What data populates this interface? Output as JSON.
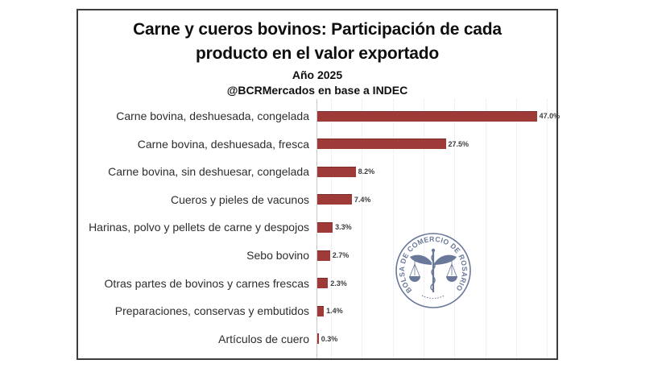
{
  "figure": {
    "title_line1": "Carne y cueros bovinos: Participación de cada",
    "title_line2": "producto en el valor exportado",
    "subtitle": "Año 2025",
    "source": "@BCRMercados en base a INDEC"
  },
  "chart_data": {
    "type": "bar",
    "orientation": "horizontal",
    "title": "Carne y cueros bovinos: Participación de cada producto en el valor exportado",
    "subtitle": "Año 2025",
    "source": "@BCRMercados en base a INDEC",
    "xlabel": "",
    "ylabel": "",
    "xlim": [
      0,
      50
    ],
    "grid": "faint dotted vertical gridlines, no tick labels",
    "legend": "none",
    "bar_color": "#9e3b38",
    "categories": [
      "Carne bovina, deshuesada, congelada",
      "Carne bovina, deshuesada, fresca",
      "Carne bovina, sin deshuesar, congelada",
      "Cueros y pieles de vacunos",
      "Harinas, polvo y pellets de carne y despojos",
      "Sebo bovino",
      "Otras partes de bovinos y carnes frescas",
      "Preparaciones, conservas y embutidos",
      "Artículos de cuero"
    ],
    "values": [
      47.0,
      27.5,
      8.2,
      7.4,
      3.3,
      2.7,
      2.3,
      1.4,
      0.3
    ],
    "value_labels": [
      "47.0%",
      "27.5%",
      "8.2%",
      "7.4%",
      "3.3%",
      "2.7%",
      "2.3%",
      "1.4%",
      "0.3%"
    ]
  },
  "watermark": {
    "org": "BOLSA DE COMERCIO DE ROSARIO",
    "emblem": "caduceus with twin balance scales in circular seal",
    "color": "#5e6d91"
  },
  "colors": {
    "bar": "#9e3b38",
    "panel_border": "#3d3d3d",
    "axis_line": "#c9c9c9",
    "gridline": "#e3e3ec",
    "title_text": "#0f0f0f",
    "category_text": "#2d2d2d",
    "value_text": "#3d3d3d",
    "watermark": "#5e6d91"
  }
}
